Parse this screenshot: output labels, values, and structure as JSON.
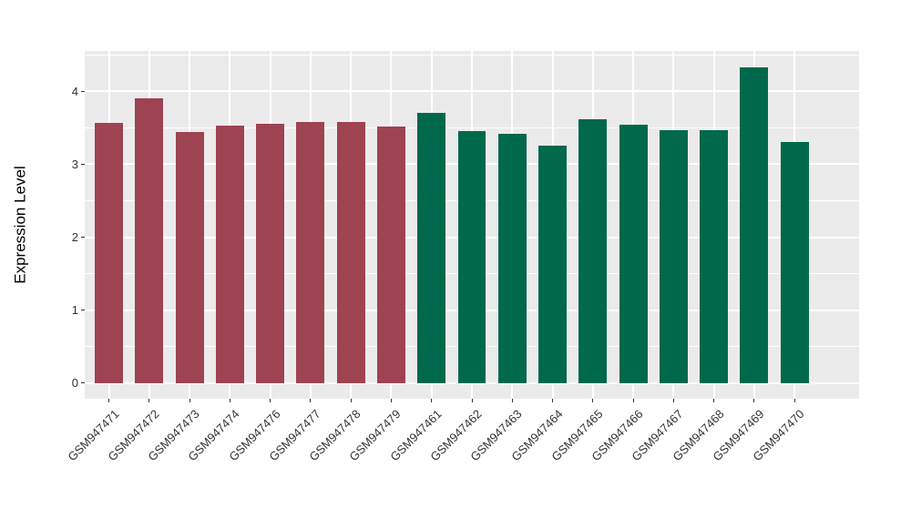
{
  "chart_data": {
    "type": "bar",
    "title": "",
    "xlabel": "",
    "ylabel": "Expression Level",
    "categories": [
      "GSM947471",
      "GSM947472",
      "GSM947473",
      "GSM947474",
      "GSM947476",
      "GSM947477",
      "GSM947478",
      "GSM947479",
      "GSM947461",
      "GSM947462",
      "GSM947463",
      "GSM947464",
      "GSM947465",
      "GSM947466",
      "GSM947467",
      "GSM947468",
      "GSM947469",
      "GSM947470"
    ],
    "values": [
      3.57,
      3.91,
      3.44,
      3.53,
      3.55,
      3.58,
      3.58,
      3.52,
      3.7,
      3.45,
      3.42,
      3.25,
      3.62,
      3.54,
      3.47,
      3.47,
      4.33,
      3.31
    ],
    "bar_colors": [
      "#9E4352",
      "#9E4352",
      "#9E4352",
      "#9E4352",
      "#9E4352",
      "#9E4352",
      "#9E4352",
      "#9E4352",
      "#00684B",
      "#00684B",
      "#00684B",
      "#00684B",
      "#00684B",
      "#00684B",
      "#00684B",
      "#00684B",
      "#00684B",
      "#00684B"
    ],
    "group_colors": {
      "left_group": "#9E4352",
      "right_group": "#00684B"
    },
    "y_ticks": [
      0,
      1,
      2,
      3,
      4
    ],
    "y_minor_ticks": [
      0.5,
      1.5,
      2.5,
      3.5,
      4.5
    ],
    "ylim": [
      0,
      4.55
    ],
    "grid": "on",
    "legend": "none",
    "panel_background": "#EBEBEB",
    "gridline_color": "#FFFFFF",
    "tick_color": "#333333"
  }
}
